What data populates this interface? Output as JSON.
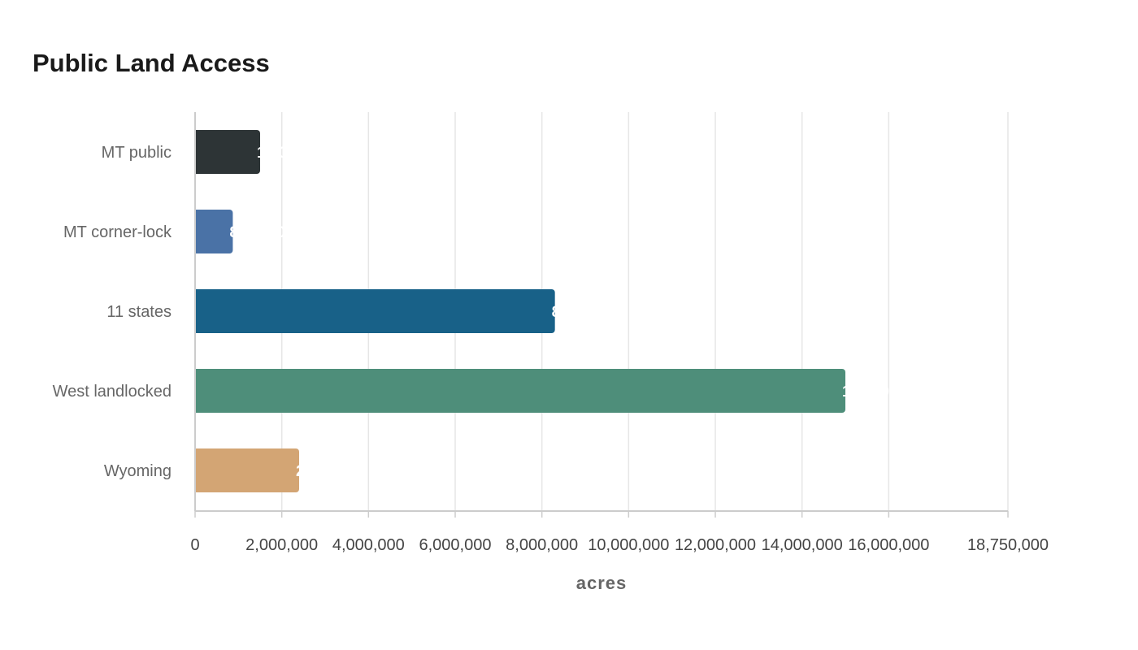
{
  "chart_data": {
    "type": "bar",
    "orientation": "horizontal",
    "title": "Public Land Access",
    "xlabel": "acres",
    "ylabel": "",
    "xlim": [
      0,
      18750000
    ],
    "x_ticks": [
      0,
      2000000,
      4000000,
      6000000,
      8000000,
      10000000,
      12000000,
      14000000,
      16000000,
      18750000
    ],
    "x_tick_labels": [
      "0",
      "2,000,000",
      "4,000,000",
      "6,000,000",
      "8,000,000",
      "10,000,000",
      "12,000,000",
      "14,000,000",
      "16,000,000",
      "18,750,000"
    ],
    "categories": [
      "MT public",
      "MT corner-lock",
      "11 states",
      "West landlocked",
      "Wyoming"
    ],
    "values": [
      1500000,
      870000,
      8300000,
      15000000,
      2400000
    ],
    "colors": [
      "#2d3436",
      "#4a72a6",
      "#186188",
      "#4e8e7a",
      "#d3a574"
    ],
    "grid": true,
    "legend": "none"
  }
}
